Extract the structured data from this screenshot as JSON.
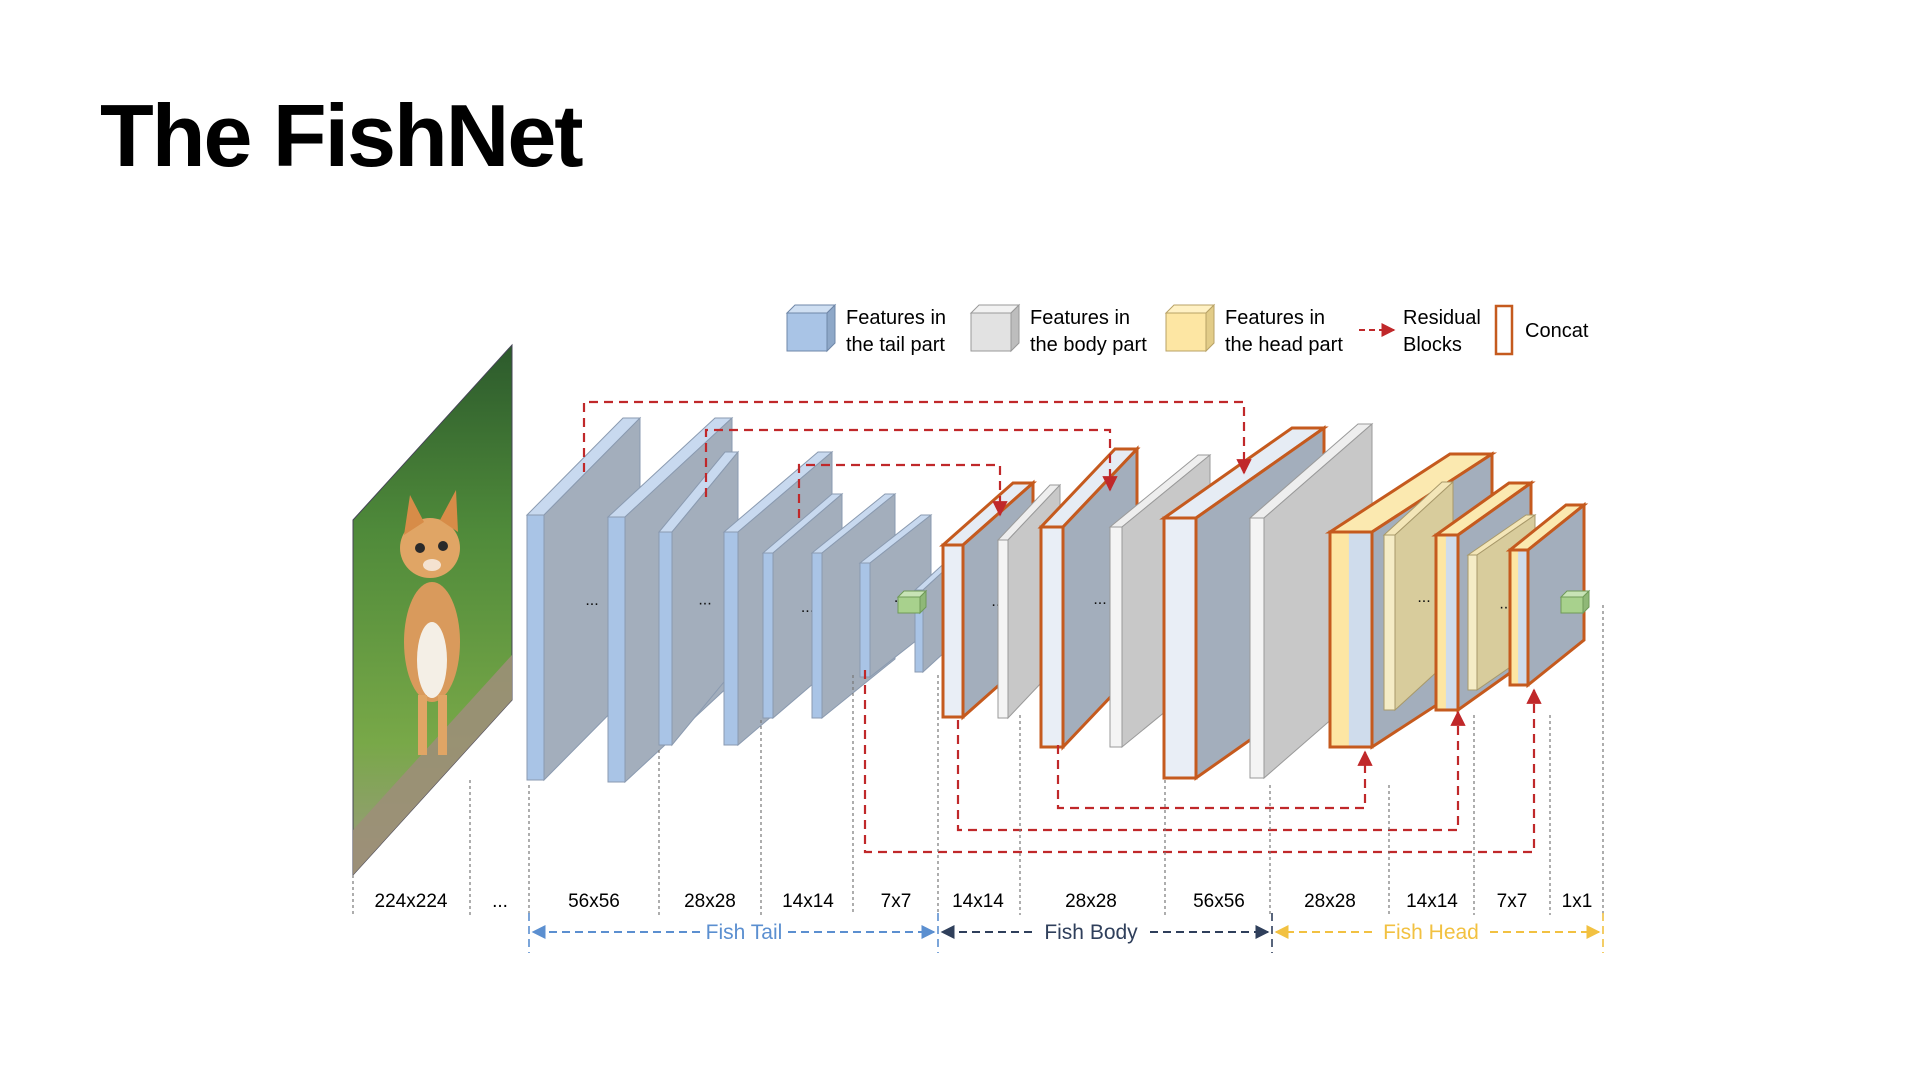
{
  "slide": {
    "title": "The FishNet"
  },
  "legend": [
    {
      "line1": "Features in",
      "line2": "the tail part"
    },
    {
      "line1": "Features in",
      "line2": "the body part"
    },
    {
      "line1": "Features in",
      "line2": "the head part"
    },
    {
      "line1": "Residual",
      "line2": "Blocks"
    },
    {
      "line1": "Concat",
      "line2": ""
    }
  ],
  "ellipsis": "...",
  "resolutions": [
    "224x224",
    "...",
    "56x56",
    "28x28",
    "14x14",
    "7x7",
    "14x14",
    "28x28",
    "56x56",
    "28x28",
    "14x14",
    "7x7",
    "1x1"
  ],
  "sections": {
    "tail": "Fish Tail",
    "body": "Fish Body",
    "head": "Fish Head"
  },
  "colors": {
    "tail": "#a9c4e6",
    "tail_face": "#a3aebc",
    "body": "#e0e0e0",
    "head": "#fde6a3",
    "head_face": "#d8cc9c",
    "concat": "#c55a1e",
    "residual": "#c0282a",
    "tail_arrow": "#5b8fd0",
    "body_arrow": "#2f3f5b",
    "head_arrow": "#f2c141",
    "output": "#a8d18d"
  }
}
